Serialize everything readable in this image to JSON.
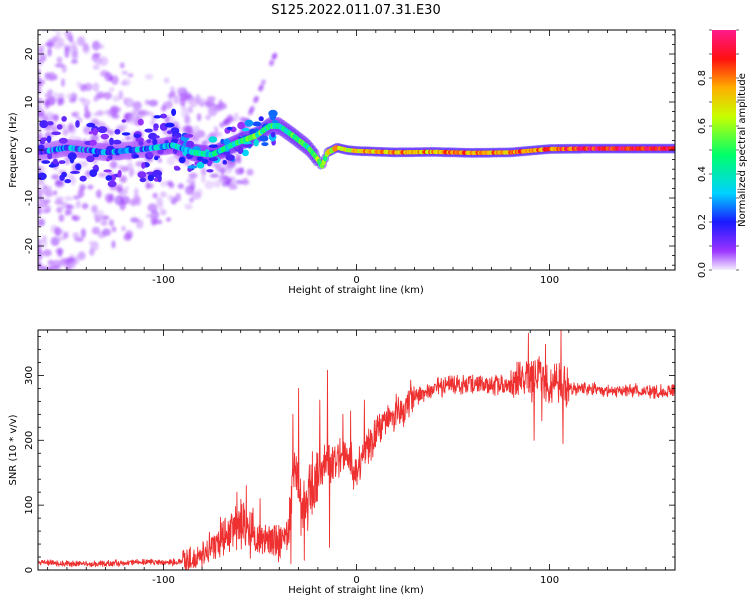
{
  "title": "S125.2022.011.07.31.E30",
  "chart_data": [
    {
      "type": "heatmap",
      "xlabel": "Height of straight line (km)",
      "ylabel": "Frequency (Hz)",
      "xlim": [
        -165,
        165
      ],
      "ylim": [
        -25,
        25
      ],
      "x_ticks": [
        -100,
        0,
        100
      ],
      "y_ticks": [
        -20,
        -10,
        0,
        10,
        20
      ],
      "colorbar": {
        "label": "Normalized spectral amplitude",
        "range": [
          0,
          1
        ],
        "ticks": [
          0.0,
          0.2,
          0.4,
          0.6,
          0.8
        ],
        "colors": [
          "#f4eeff",
          "#9b34ff",
          "#1a1aff",
          "#00d2ff",
          "#00ff6a",
          "#c8ff00",
          "#ffae00",
          "#ff1010",
          "#ff1a8c"
        ]
      },
      "ridge": {
        "x": [
          -165,
          -150,
          -130,
          -110,
          -95,
          -85,
          -75,
          -62,
          -52,
          -45,
          -40,
          -33,
          -25,
          -20,
          -18,
          -15,
          -10,
          -5,
          0,
          20,
          40,
          60,
          80,
          100,
          120,
          140,
          165
        ],
        "freq": [
          -0.5,
          0.5,
          -0.5,
          0.2,
          1.0,
          -0.5,
          -1.0,
          1.5,
          3.0,
          5.0,
          5.0,
          3.0,
          0.5,
          -2.0,
          -3.5,
          -0.5,
          0.5,
          0.0,
          -0.2,
          -0.5,
          -0.4,
          -0.6,
          -0.5,
          0.2,
          0.3,
          0.3,
          0.3
        ],
        "amplitude": [
          0.2,
          0.25,
          0.25,
          0.25,
          0.3,
          0.4,
          0.35,
          0.45,
          0.5,
          0.45,
          0.4,
          0.5,
          0.45,
          0.55,
          0.45,
          0.65,
          0.7,
          0.65,
          0.72,
          0.78,
          0.75,
          0.8,
          0.78,
          0.82,
          0.9,
          0.92,
          0.92
        ]
      }
    },
    {
      "type": "line",
      "xlabel": "Height of straight line (km)",
      "ylabel": "SNR (10 * v/v)",
      "xlim": [
        -165,
        165
      ],
      "ylim": [
        0,
        370
      ],
      "x_ticks": [
        -100,
        0,
        100
      ],
      "y_ticks": [
        0,
        100,
        200,
        300
      ],
      "color": "#ee3030",
      "series": [
        {
          "x": [
            -165,
            -150,
            -130,
            -110,
            -95,
            -85,
            -78,
            -72,
            -65,
            -58,
            -52,
            -45,
            -40,
            -36,
            -33,
            -30,
            -28,
            -24,
            -20,
            -16,
            -12,
            -8,
            -4,
            0,
            5,
            10,
            15,
            20,
            25,
            30,
            40,
            50,
            60,
            70,
            80,
            85,
            90,
            95,
            100,
            105,
            110,
            120,
            140,
            165
          ],
          "y": [
            12,
            10,
            10,
            12,
            12,
            15,
            25,
            45,
            60,
            70,
            55,
            45,
            40,
            50,
            140,
            120,
            90,
            130,
            150,
            170,
            160,
            180,
            170,
            150,
            180,
            210,
            225,
            240,
            250,
            268,
            280,
            285,
            285,
            285,
            285,
            290,
            295,
            300,
            280,
            285,
            280,
            278,
            276,
            275
          ]
        }
      ],
      "spikes": [
        {
          "x": -30,
          "y": 280
        },
        {
          "x": -33,
          "y": 240
        },
        {
          "x": -15,
          "y": 308
        },
        {
          "x": -19,
          "y": 262
        },
        {
          "x": -57,
          "y": 130
        },
        {
          "x": -50,
          "y": 110
        },
        {
          "x": -62,
          "y": 120
        },
        {
          "x": -68,
          "y": 80
        },
        {
          "x": -7,
          "y": 240
        },
        {
          "x": -3,
          "y": 245
        },
        {
          "x": 4,
          "y": 262
        },
        {
          "x": 89,
          "y": 365
        },
        {
          "x": 92,
          "y": 350
        },
        {
          "x": 98,
          "y": 348
        },
        {
          "x": 106,
          "y": 370
        },
        {
          "x": 84,
          "y": 320
        }
      ],
      "dips": [
        {
          "x": -14,
          "y": 35
        },
        {
          "x": -27,
          "y": 15
        },
        {
          "x": -34,
          "y": 10
        },
        {
          "x": -40,
          "y": 22
        },
        {
          "x": 92,
          "y": 200
        },
        {
          "x": 107,
          "y": 195
        },
        {
          "x": 96,
          "y": 230
        },
        {
          "x": -55,
          "y": 18
        }
      ]
    }
  ]
}
